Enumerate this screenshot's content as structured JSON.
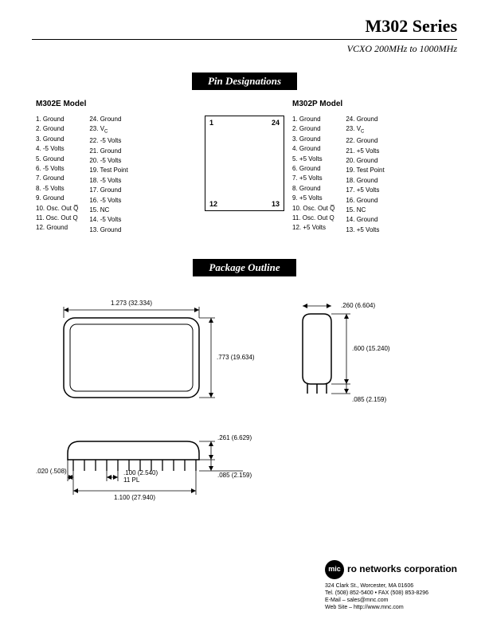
{
  "header": {
    "title": "M302 Series",
    "subtitle": "VCXO 200MHz to 1000MHz"
  },
  "sections": {
    "pin_designations": "Pin Designations",
    "package_outline": "Package Outline"
  },
  "models": {
    "e": {
      "title": "M302E Model",
      "col1": [
        "1. Ground",
        "2. Ground",
        "3. Ground",
        "4. -5 Volts",
        "5. Ground",
        "6. -5 Volts",
        "7. Ground",
        "8. -5 Volts",
        "9. Ground",
        "10. Osc. Out Q̅",
        "11. Osc. Out Q",
        "12. Ground"
      ],
      "col2": [
        "24. Ground",
        "23. V",
        "22. -5 Volts",
        "21. Ground",
        "20. -5 Volts",
        "19. Test Point",
        "18. -5 Volts",
        "17. Ground",
        "16. -5 Volts",
        "15. NC",
        "14. -5 Volts",
        "13. Ground"
      ]
    },
    "p": {
      "title": "M302P Model",
      "col1": [
        "1. Ground",
        "2. Ground",
        "3. Ground",
        "4. Ground",
        "5. +5 Volts",
        "6. Ground",
        "7. +5 Volts",
        "8. Ground",
        "9. +5 Volts",
        "10. Osc. Out Q̅",
        "11. Osc. Out Q",
        "12. +5 Volts"
      ],
      "col2": [
        "24. Ground",
        "23. V",
        "22. Ground",
        "21. +5 Volts",
        "20. Ground",
        "19. Test Point",
        "18. Ground",
        "17. +5 Volts",
        "16. Ground",
        "15. NC",
        "14. Ground",
        "13. +5 Volts"
      ]
    }
  },
  "diagram_corners": {
    "tl": "1",
    "tr": "24",
    "bl": "12",
    "br": "13"
  },
  "package": {
    "top_width": "1.273 (32.334)",
    "top_height": ".773 (19.634)",
    "side_width": ".260 (6.604)",
    "side_height": ".600 (15.240)",
    "side_lead": ".085 (2.159)",
    "bottom_pin_offset": ".020 (.508)",
    "bottom_pitch": ".100 (2.540)",
    "bottom_pitch_note": "11 PL",
    "bottom_span": "1.100 (27.940)",
    "bottom_height": ".261 (6.629)",
    "bottom_lead": ".085 (2.159)"
  },
  "footer": {
    "brand_prefix": "mic",
    "brand_rest": "ro networks corporation",
    "addr": "324 Clark St., Worcester, MA 01606",
    "tel": "Tel. (508) 852-5400 • FAX (508) 853-8296",
    "email": "E-Mail – sales@mnc.com",
    "web": "Web Site – http://www.mnc.com"
  }
}
